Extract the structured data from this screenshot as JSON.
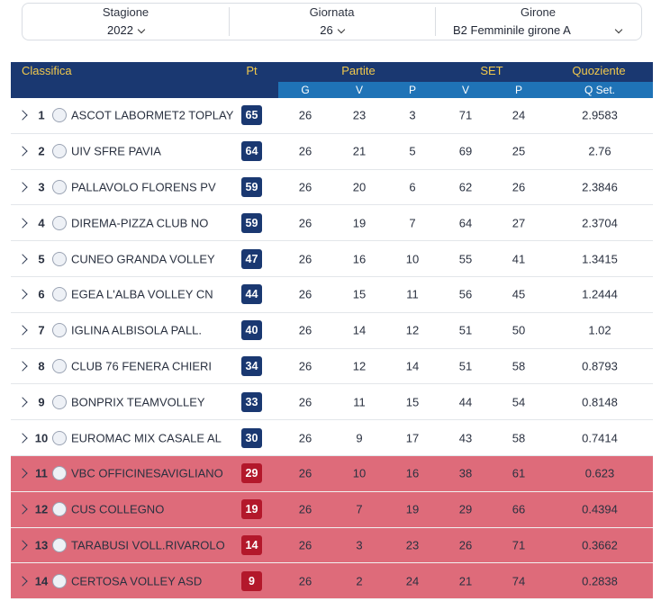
{
  "filters": [
    {
      "label": "Stagione",
      "value": "2022"
    },
    {
      "label": "Giornata",
      "value": "26"
    },
    {
      "label": "Girone",
      "value": "B2 Femminile girone A"
    }
  ],
  "header": {
    "classifica": "Classifica",
    "pt": "Pt",
    "partite": "Partite",
    "set": "SET",
    "quoziente": "Quoziente",
    "g": "G",
    "v": "V",
    "p": "P",
    "set_v": "V",
    "set_p": "P",
    "qset": "Q Set."
  },
  "colors": {
    "header_dark": "#1a3871",
    "header_sub": "#1f73b7",
    "header_text": "#f2c94c",
    "relegation_row": "#de6b7a",
    "relegation_badge": "#b3182b"
  },
  "rows": [
    {
      "pos": "1",
      "team": "ASCOT LABORMET2 TOPLAY",
      "pt": "65",
      "g": "26",
      "v": "23",
      "p": "3",
      "sv": "71",
      "sp": "24",
      "q": "2.9583",
      "relegation": false
    },
    {
      "pos": "2",
      "team": "UIV SFRE PAVIA",
      "pt": "64",
      "g": "26",
      "v": "21",
      "p": "5",
      "sv": "69",
      "sp": "25",
      "q": "2.76",
      "relegation": false
    },
    {
      "pos": "3",
      "team": "PALLAVOLO FLORENS PV",
      "pt": "59",
      "g": "26",
      "v": "20",
      "p": "6",
      "sv": "62",
      "sp": "26",
      "q": "2.3846",
      "relegation": false
    },
    {
      "pos": "4",
      "team": "DIREMA-PIZZA CLUB NO",
      "pt": "59",
      "g": "26",
      "v": "19",
      "p": "7",
      "sv": "64",
      "sp": "27",
      "q": "2.3704",
      "relegation": false
    },
    {
      "pos": "5",
      "team": "CUNEO GRANDA VOLLEY",
      "pt": "47",
      "g": "26",
      "v": "16",
      "p": "10",
      "sv": "55",
      "sp": "41",
      "q": "1.3415",
      "relegation": false
    },
    {
      "pos": "6",
      "team": "EGEA L'ALBA VOLLEY CN",
      "pt": "44",
      "g": "26",
      "v": "15",
      "p": "11",
      "sv": "56",
      "sp": "45",
      "q": "1.2444",
      "relegation": false
    },
    {
      "pos": "7",
      "team": "IGLINA ALBISOLA PALL.",
      "pt": "40",
      "g": "26",
      "v": "14",
      "p": "12",
      "sv": "51",
      "sp": "50",
      "q": "1.02",
      "relegation": false
    },
    {
      "pos": "8",
      "team": "CLUB 76 FENERA CHIERI",
      "pt": "34",
      "g": "26",
      "v": "12",
      "p": "14",
      "sv": "51",
      "sp": "58",
      "q": "0.8793",
      "relegation": false
    },
    {
      "pos": "9",
      "team": "BONPRIX TEAMVOLLEY",
      "pt": "33",
      "g": "26",
      "v": "11",
      "p": "15",
      "sv": "44",
      "sp": "54",
      "q": "0.8148",
      "relegation": false
    },
    {
      "pos": "10",
      "team": "EUROMAC MIX CASALE AL",
      "pt": "30",
      "g": "26",
      "v": "9",
      "p": "17",
      "sv": "43",
      "sp": "58",
      "q": "0.7414",
      "relegation": false
    },
    {
      "pos": "11",
      "team": "VBC OFFICINESAVIGLIANO",
      "pt": "29",
      "g": "26",
      "v": "10",
      "p": "16",
      "sv": "38",
      "sp": "61",
      "q": "0.623",
      "relegation": true
    },
    {
      "pos": "12",
      "team": "CUS COLLEGNO",
      "pt": "19",
      "g": "26",
      "v": "7",
      "p": "19",
      "sv": "29",
      "sp": "66",
      "q": "0.4394",
      "relegation": true
    },
    {
      "pos": "13",
      "team": "TARABUSI VOLL.RIVAROLO",
      "pt": "14",
      "g": "26",
      "v": "3",
      "p": "23",
      "sv": "26",
      "sp": "71",
      "q": "0.3662",
      "relegation": true
    },
    {
      "pos": "14",
      "team": "CERTOSA VOLLEY ASD",
      "pt": "9",
      "g": "26",
      "v": "2",
      "p": "24",
      "sv": "21",
      "sp": "74",
      "q": "0.2838",
      "relegation": true
    }
  ]
}
